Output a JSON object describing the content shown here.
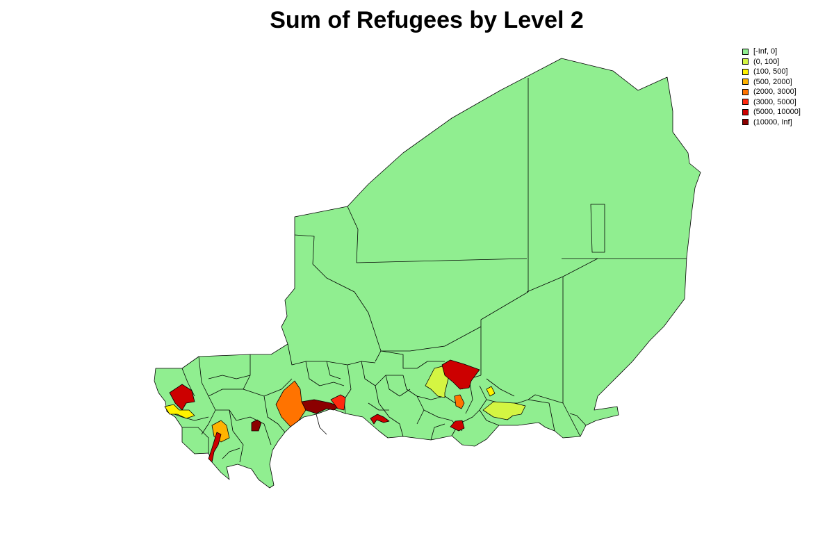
{
  "title": "Sum of Refugees by Level 2",
  "legend": {
    "items": [
      {
        "label": "[-Inf, 0]",
        "color": "#90EE90"
      },
      {
        "label": "(0, 100]",
        "color": "#D4F542"
      },
      {
        "label": "(100, 500]",
        "color": "#FFF200"
      },
      {
        "label": "(500, 2000]",
        "color": "#FFB300"
      },
      {
        "label": "(2000, 3000]",
        "color": "#FF7300"
      },
      {
        "label": "(3000, 5000]",
        "color": "#FF2A10"
      },
      {
        "label": "(5000, 10000]",
        "color": "#CC0000"
      },
      {
        "label": "(10000, Inf]",
        "color": "#8B0000"
      }
    ]
  },
  "map": {
    "country": "Niger",
    "admin_level": "Level 2",
    "base_color": "#90EE90",
    "border_color": "#000000"
  }
}
